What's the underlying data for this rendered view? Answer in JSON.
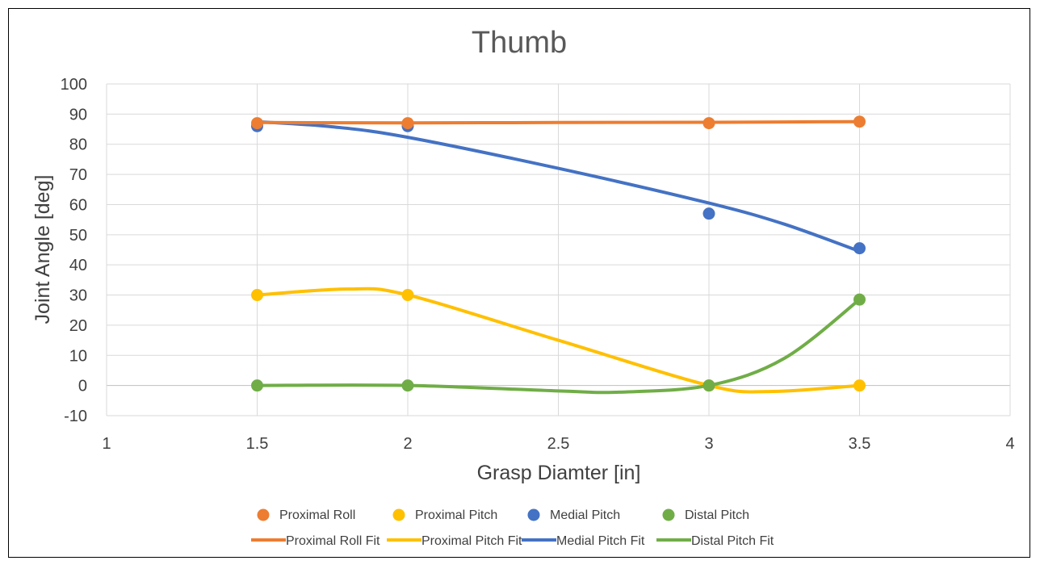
{
  "chart_data": {
    "type": "scatter",
    "title": "Thumb",
    "xlabel": "Grasp Diamter [in]",
    "ylabel": "Joint Angle [deg]",
    "xlim": [
      1,
      4
    ],
    "ylim": [
      -10,
      100
    ],
    "x_ticks": [
      "1",
      "1.5",
      "2",
      "2.5",
      "3",
      "3.5",
      "4"
    ],
    "y_ticks": [
      "-10",
      "0",
      "10",
      "20",
      "30",
      "40",
      "50",
      "60",
      "70",
      "80",
      "90",
      "100"
    ],
    "grid": true,
    "legend_position": "bottom",
    "x": [
      1.5,
      2,
      3,
      3.5
    ],
    "series": [
      {
        "name": "Proximal Roll",
        "values": [
          87,
          87,
          87,
          87.5
        ],
        "color": "#ED7D31"
      },
      {
        "name": "Proximal Pitch",
        "values": [
          30,
          30,
          0,
          0
        ],
        "color": "#FFC000"
      },
      {
        "name": "Medial Pitch",
        "values": [
          86,
          86,
          57,
          45.5
        ],
        "color": "#4472C4"
      },
      {
        "name": "Distal Pitch",
        "values": [
          0,
          0,
          0,
          28.5
        ],
        "color": "#70AD47"
      }
    ],
    "fits": [
      {
        "name": "Proximal Roll Fit",
        "color": "#ED7D31",
        "x": [
          1.5,
          2,
          2.5,
          3,
          3.5
        ],
        "y": [
          87.2,
          87.1,
          87.2,
          87.3,
          87.5
        ]
      },
      {
        "name": "Proximal Pitch Fit",
        "color": "#FFC000",
        "x": [
          1.5,
          1.8,
          2,
          2.5,
          3,
          3.2,
          3.5
        ],
        "y": [
          30,
          32,
          30,
          15,
          0,
          -2,
          0
        ]
      },
      {
        "name": "Medial Pitch Fit",
        "color": "#4472C4",
        "x": [
          1.5,
          1.75,
          2,
          2.5,
          3,
          3.25,
          3.5
        ],
        "y": [
          87.5,
          85.8,
          82.3,
          72,
          60.5,
          53.5,
          44.5
        ]
      },
      {
        "name": "Distal Pitch Fit",
        "color": "#70AD47",
        "x": [
          1.5,
          2,
          2.5,
          2.7,
          3,
          3.25,
          3.5
        ],
        "y": [
          0,
          0,
          -1.8,
          -2.2,
          0,
          9,
          28.5
        ]
      }
    ]
  }
}
